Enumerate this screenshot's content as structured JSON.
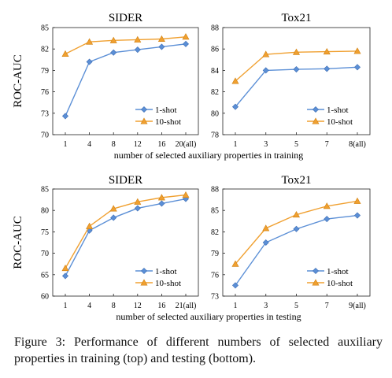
{
  "chart_data": [
    {
      "type": "line",
      "title": "SIDER",
      "ylabel": "ROC-AUC",
      "xlabel": "number of selected auxiliary properties in training",
      "categories": [
        "1",
        "4",
        "8",
        "12",
        "16",
        "20(all)"
      ],
      "ylim": [
        70,
        85
      ],
      "yticks": [
        70,
        73,
        76,
        79,
        82,
        85
      ],
      "grid": false,
      "legend_position": "bottom-right",
      "series": [
        {
          "name": "1-shot",
          "marker": "diamond",
          "color": "#5b8fd6",
          "values": [
            72.6,
            80.2,
            81.5,
            81.9,
            82.3,
            82.7
          ]
        },
        {
          "name": "10-shot",
          "marker": "triangle",
          "color": "#f0a030",
          "values": [
            81.3,
            83.0,
            83.2,
            83.3,
            83.4,
            83.7
          ]
        }
      ]
    },
    {
      "type": "line",
      "title": "Tox21",
      "ylabel": "",
      "xlabel": "",
      "categories": [
        "1",
        "3",
        "5",
        "7",
        "8(all)"
      ],
      "ylim": [
        78,
        88
      ],
      "yticks": [
        78,
        80,
        82,
        84,
        86,
        88
      ],
      "grid": false,
      "legend_position": "bottom-right",
      "series": [
        {
          "name": "1-shot",
          "marker": "diamond",
          "color": "#5b8fd6",
          "values": [
            80.6,
            84.0,
            84.1,
            84.15,
            84.3
          ]
        },
        {
          "name": "10-shot",
          "marker": "triangle",
          "color": "#f0a030",
          "values": [
            83.0,
            85.5,
            85.7,
            85.75,
            85.8
          ]
        }
      ]
    },
    {
      "type": "line",
      "title": "SIDER",
      "ylabel": "ROC-AUC",
      "xlabel": "number of selected auxiliary properties in testing",
      "categories": [
        "1",
        "4",
        "8",
        "12",
        "16",
        "21(all)"
      ],
      "ylim": [
        60,
        85
      ],
      "yticks": [
        60,
        65,
        70,
        75,
        80,
        85
      ],
      "grid": false,
      "legend_position": "bottom-right",
      "series": [
        {
          "name": "1-shot",
          "marker": "diamond",
          "color": "#5b8fd6",
          "values": [
            64.7,
            75.3,
            78.3,
            80.5,
            81.6,
            82.7
          ]
        },
        {
          "name": "10-shot",
          "marker": "triangle",
          "color": "#f0a030",
          "values": [
            66.5,
            76.3,
            80.4,
            82.0,
            83.0,
            83.6
          ]
        }
      ]
    },
    {
      "type": "line",
      "title": "Tox21",
      "ylabel": "",
      "xlabel": "",
      "categories": [
        "1",
        "3",
        "5",
        "7",
        "9(all)"
      ],
      "ylim": [
        73,
        88
      ],
      "yticks": [
        73,
        76,
        79,
        82,
        85,
        88
      ],
      "grid": false,
      "legend_position": "bottom-right",
      "series": [
        {
          "name": "1-shot",
          "marker": "diamond",
          "color": "#5b8fd6",
          "values": [
            74.5,
            80.5,
            82.4,
            83.8,
            84.3
          ]
        },
        {
          "name": "10-shot",
          "marker": "triangle",
          "color": "#f0a030",
          "values": [
            77.5,
            82.5,
            84.4,
            85.6,
            86.3
          ]
        }
      ]
    }
  ],
  "caption": "Figure 3: Performance of different numbers of selected auxiliary properties in training (top) and testing (bottom)."
}
